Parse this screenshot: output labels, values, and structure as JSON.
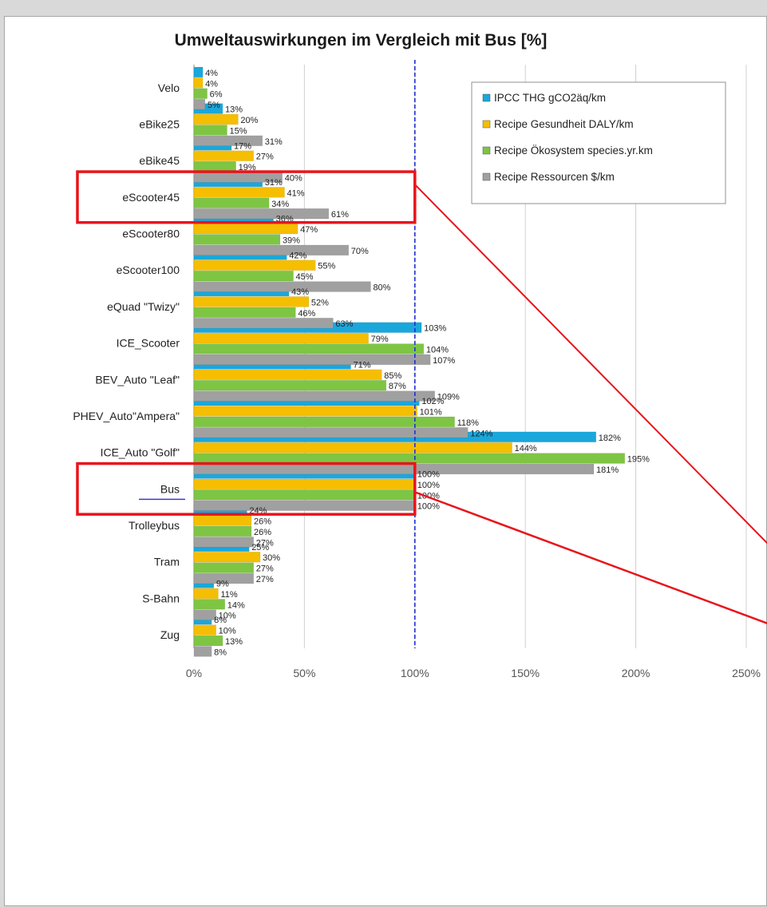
{
  "chart_data": {
    "type": "bar",
    "orientation": "horizontal",
    "title": "Umweltauswirkungen im Vergleich mit Bus [%]",
    "categories": [
      "Velo",
      "eBike25",
      "eBike45",
      "eScooter45",
      "eScooter80",
      "eScooter100",
      "eQuad \"Twizy\"",
      "ICE_Scooter",
      "BEV_Auto \"Leaf\"",
      "PHEV_Auto\"Ampera\"",
      "ICE_Auto \"Golf\"",
      "Bus",
      "Trolleybus",
      "Tram",
      "S-Bahn",
      "Zug"
    ],
    "series": [
      {
        "name": "IPCC THG gCO2äq/km",
        "color": "#1aa7dc",
        "values": [
          4,
          13,
          17,
          31,
          36,
          42,
          43,
          103,
          71,
          102,
          182,
          100,
          24,
          25,
          9,
          8
        ]
      },
      {
        "name": "Recipe Gesundheit DALY/km",
        "color": "#f5be00",
        "values": [
          4,
          20,
          27,
          41,
          47,
          55,
          52,
          79,
          85,
          101,
          144,
          100,
          26,
          30,
          11,
          10
        ]
      },
      {
        "name": "Recipe Ökosystem species.yr.km",
        "color": "#7ec544",
        "values": [
          6,
          15,
          19,
          34,
          39,
          45,
          46,
          104,
          87,
          118,
          195,
          100,
          26,
          27,
          14,
          13
        ]
      },
      {
        "name": "Recipe Ressourcen $/km",
        "color": "#a0a0a0",
        "values": [
          5,
          31,
          40,
          61,
          70,
          80,
          63,
          107,
          109,
          124,
          181,
          100,
          27,
          27,
          10,
          8
        ]
      }
    ],
    "value_labels": [
      [
        "4%",
        "13%",
        "17%",
        "31%",
        "36%",
        "42%",
        "43%",
        "103%",
        "71%",
        "102%",
        "182%",
        "100%",
        "24%",
        "25%",
        "9%",
        "8%"
      ],
      [
        "4%",
        "20%",
        "27%",
        "41%",
        "47%",
        "55%",
        "52%",
        "79%",
        "85%",
        "101%",
        "144%",
        "100%",
        "26%",
        "30%",
        "11%",
        "10%"
      ],
      [
        "6%",
        "15%",
        "19%",
        "34%",
        "39%",
        "45%",
        "46%",
        "104%",
        "87%",
        "118%",
        "195%",
        "100%",
        "26%",
        "27%",
        "14%",
        "13%"
      ],
      [
        "5%",
        "31%",
        "40%",
        "61%",
        "70%",
        "80%",
        "63%",
        "107%",
        "109%",
        "124%",
        "181%",
        "100%",
        "27%",
        "27%",
        "10%",
        "8%"
      ]
    ],
    "xlim": [
      0,
      250
    ],
    "xticks": [
      0,
      50,
      100,
      150,
      200,
      250
    ],
    "xtick_labels": [
      "0%",
      "50%",
      "100%",
      "150%",
      "200%",
      "250%"
    ],
    "reference_line": 100,
    "reference_line_color": "#1f2fd0",
    "grid": true,
    "legend_position": "top-right",
    "highlight_categories": [
      "eScooter45",
      "Bus"
    ],
    "highlight_color": "#e8141b"
  }
}
